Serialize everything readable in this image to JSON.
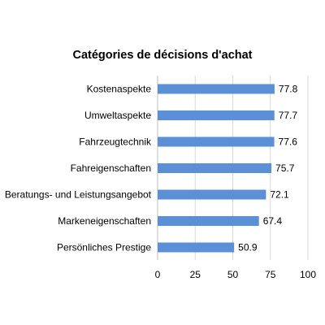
{
  "chart_data": {
    "type": "bar",
    "orientation": "horizontal",
    "title": "Catégories de décisions d'achat",
    "xlabel": "",
    "ylabel": "",
    "categories": [
      "Kostenaspekte",
      "Umweltaspekte",
      "Fahrzeugtechnik",
      "Fahreigenschaften",
      "Beratungs- und Leistungsangebot",
      "Markeneigenschaften",
      "Persönliches Prestige"
    ],
    "values": [
      77.8,
      77.7,
      77.6,
      75.7,
      72.1,
      67.4,
      50.9
    ],
    "value_labels": [
      "77.8",
      "77.7",
      "77.6",
      "75.7",
      "72.1",
      "67.4",
      "50.9"
    ],
    "xlim": [
      0,
      100
    ],
    "xticks": [
      "0",
      "25",
      "50",
      "75",
      "100"
    ],
    "grid": "vertical",
    "bar_color": "#5b8fd6",
    "grid_color": "#d9d9d9"
  }
}
